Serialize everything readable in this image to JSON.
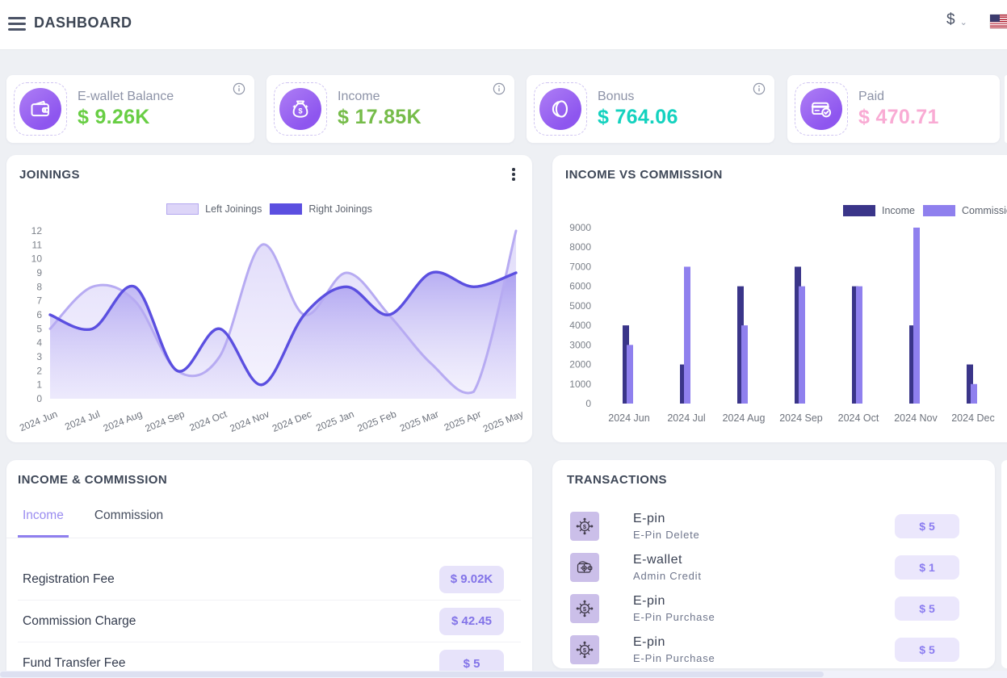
{
  "header": {
    "title": "DASHBOARD",
    "currency": "$"
  },
  "stats": [
    {
      "label": "E-wallet Balance",
      "value": "$ 9.26K",
      "value_color": "#68ce44",
      "icon": "ewallet-icon"
    },
    {
      "label": "Income",
      "value": "$ 17.85K",
      "value_color": "#76bc4a",
      "icon": "money-bag-icon"
    },
    {
      "label": "Bonus",
      "value": "$ 764.06",
      "value_color": "#14d2bf",
      "icon": "coin-icon"
    },
    {
      "label": "Paid",
      "value": "$ 470.71",
      "value_color": "#f9abd4",
      "icon": "card-paid-icon"
    }
  ],
  "chart_data": [
    {
      "type": "area",
      "title": "JOININGS",
      "categories": [
        "2024 Jun",
        "2024 Jul",
        "2024 Aug",
        "2024 Sep",
        "2024 Oct",
        "2024 Nov",
        "2024 Dec",
        "2025 Jan",
        "2025 Feb",
        "2025 Mar",
        "2025 Apr",
        "2025 May"
      ],
      "series": [
        {
          "name": "Left Joinings",
          "color": "#b7abf2",
          "fill_from": "rgba(203,194,246,0.60)",
          "fill_to": "rgba(233,229,252,0.45)",
          "values": [
            5,
            8,
            7,
            2,
            3,
            11,
            6,
            9,
            6,
            2.5,
            0.5,
            12
          ]
        },
        {
          "name": "Right Joinings",
          "color": "#5b4fe0",
          "fill_from": "rgba(124,107,232,0.55)",
          "fill_to": "rgba(199,190,245,0.18)",
          "values": [
            6,
            5,
            8,
            2,
            5,
            1,
            6,
            8,
            6,
            9,
            8,
            9
          ]
        }
      ],
      "ylim": [
        0,
        12
      ],
      "ytick_step": 1,
      "grid": false,
      "legend_position": "top-center"
    },
    {
      "type": "bar",
      "title": "INCOME VS COMMISSION",
      "categories": [
        "2024 Jun",
        "2024 Jul",
        "2024 Aug",
        "2024 Sep",
        "2024 Oct",
        "2024 Nov",
        "2024 Dec"
      ],
      "series": [
        {
          "name": "Income",
          "color": "#3a3589",
          "values": [
            4000,
            2000,
            6000,
            7000,
            6000,
            4000,
            2000
          ]
        },
        {
          "name": "Commission",
          "color": "#8f80ee",
          "values": [
            3000,
            7000,
            4000,
            6000,
            6000,
            9000,
            1000
          ]
        }
      ],
      "ylim": [
        0,
        9000
      ],
      "ytick_step": 1000,
      "grid": false,
      "legend_position": "top-right"
    }
  ],
  "income_commission": {
    "title": "INCOME & COMMISSION",
    "tabs": [
      {
        "label": "Income"
      },
      {
        "label": "Commission"
      }
    ],
    "active_tab": "Income",
    "rows": [
      {
        "label": "Registration Fee",
        "value": "$ 9.02K"
      },
      {
        "label": "Commission Charge",
        "value": "$ 42.45"
      },
      {
        "label": "Fund Transfer Fee",
        "value": "$ 5"
      }
    ]
  },
  "transactions": {
    "title": "TRANSACTIONS",
    "items": [
      {
        "title": "E-pin",
        "subtitle": "E-Pin Delete",
        "amount": "$ 5",
        "icon": "epin-icon"
      },
      {
        "title": "E-wallet",
        "subtitle": "Admin Credit",
        "amount": "$ 1",
        "icon": "wallet-gear-icon"
      },
      {
        "title": "E-pin",
        "subtitle": "E-Pin Purchase",
        "amount": "$ 5",
        "icon": "epin-icon"
      },
      {
        "title": "E-pin",
        "subtitle": "E-Pin Purchase",
        "amount": "$ 5",
        "icon": "epin-icon"
      }
    ]
  }
}
